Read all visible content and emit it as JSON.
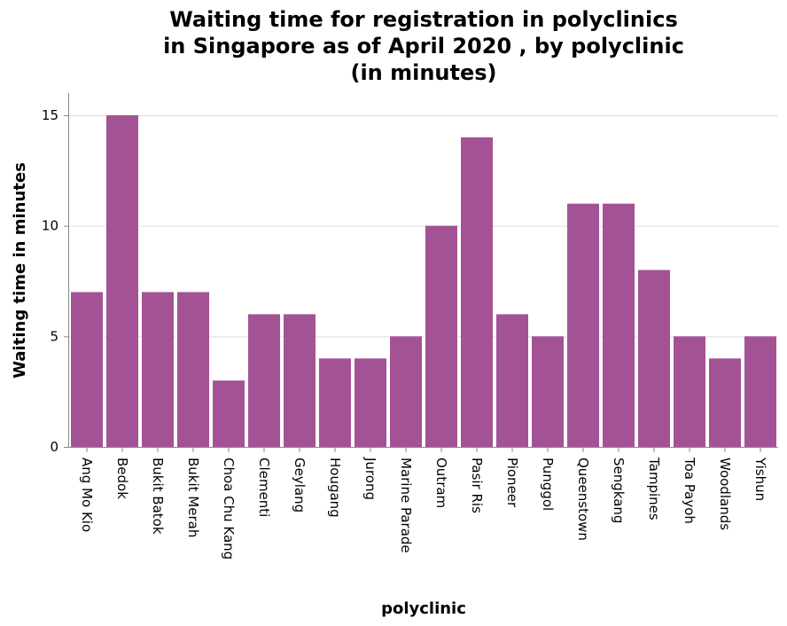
{
  "chart_data": {
    "type": "bar",
    "title": "Waiting time for registration in polyclinics in Singapore as of April 2020 , by polyclinic (in minutes)",
    "title_lines": [
      "Waiting time for registration in polyclinics",
      "in Singapore as of April 2020 , by polyclinic",
      "(in minutes)"
    ],
    "xlabel": "polyclinic",
    "ylabel": "Waiting time in minutes",
    "categories": [
      "Ang Mo Kio",
      "Bedok",
      "Bukit Batok",
      "Bukit Merah",
      "Choa Chu Kang",
      "Clementi",
      "Geylang",
      "Hougang",
      "Jurong",
      "Marine Parade",
      "Outram",
      "Pasir Ris",
      "Pioneer",
      "Punggol",
      "Queenstown",
      "Sengkang",
      "Tampines",
      "Toa Payoh",
      "Woodlands",
      "Yishun"
    ],
    "values": [
      7,
      15,
      7,
      7,
      3,
      6,
      6,
      4,
      4,
      5,
      10,
      14,
      6,
      5,
      11,
      11,
      8,
      5,
      4,
      5
    ],
    "ylim": [
      0,
      16
    ],
    "yticks": [
      0,
      5,
      10,
      15
    ],
    "grid": true,
    "bar_color": "#a45296"
  }
}
